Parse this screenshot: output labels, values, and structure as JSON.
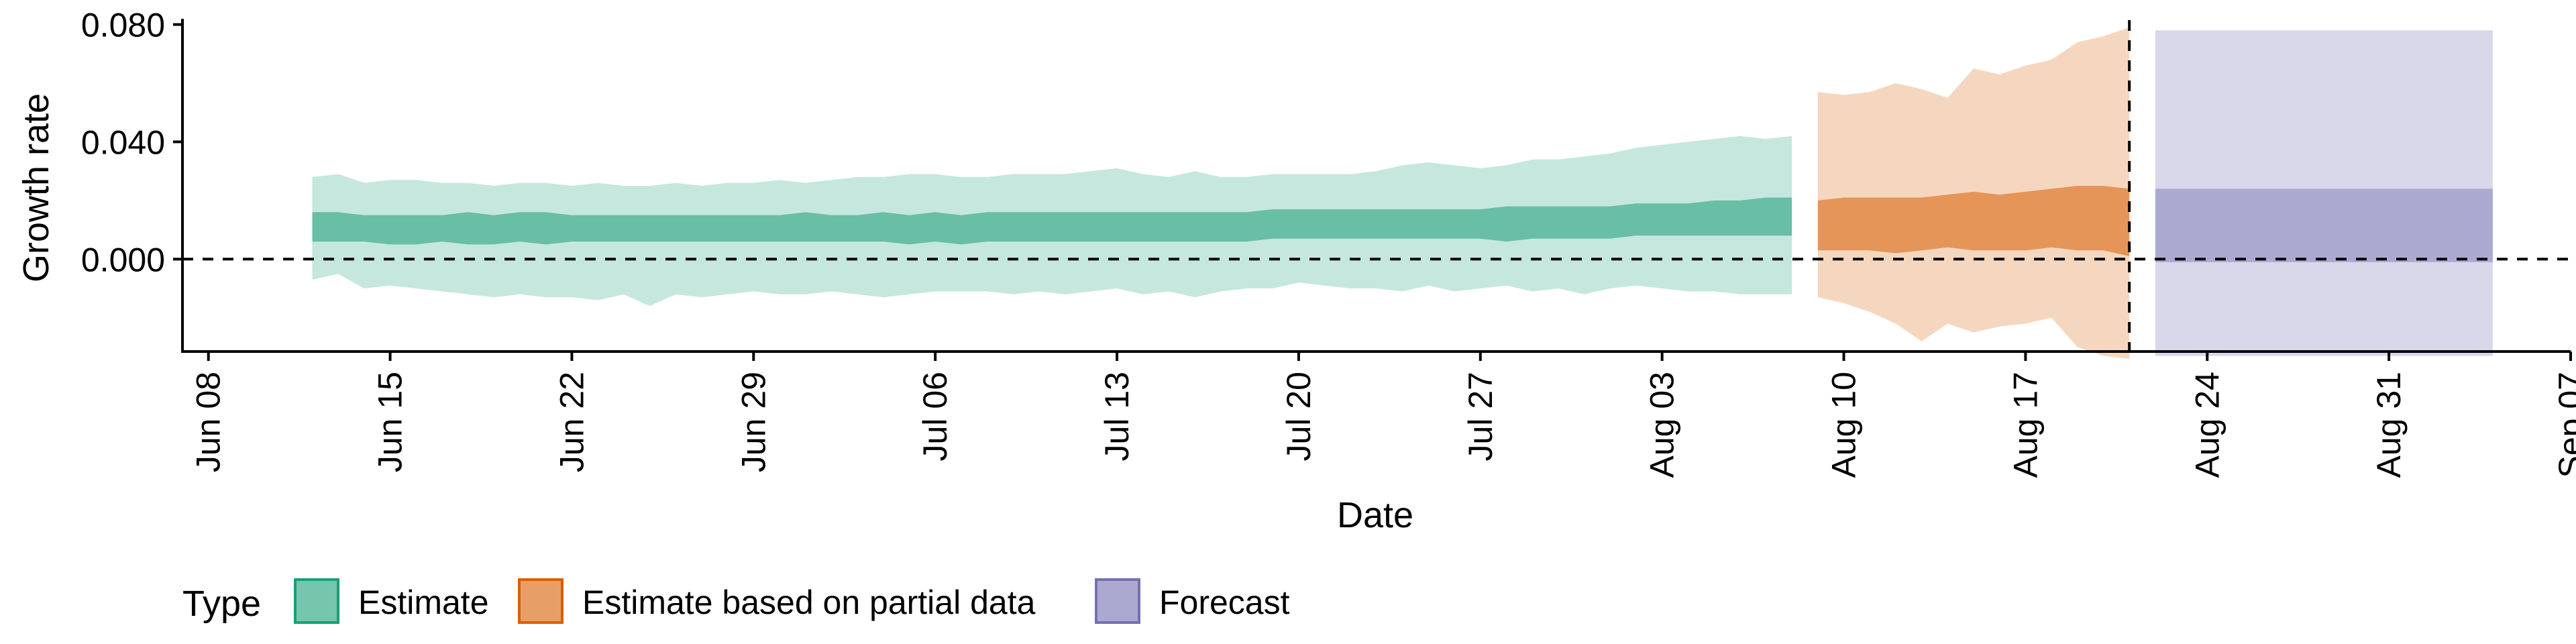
{
  "chart_data": {
    "type": "area",
    "xlabel": "Date",
    "ylabel": "Growth rate",
    "x_range": [
      "2020-06-07",
      "2020-09-07"
    ],
    "ylim": [
      -0.0315,
      0.0815
    ],
    "x_ticks": [
      "Jun 08",
      "Jun 15",
      "Jun 22",
      "Jun 29",
      "Jul 06",
      "Jul 13",
      "Jul 20",
      "Jul 27",
      "Aug 03",
      "Aug 10",
      "Aug 17",
      "Aug 24",
      "Aug 31",
      "Sep 07"
    ],
    "y_ticks": [
      0.0,
      0.04,
      0.08
    ],
    "y_tick_labels": [
      "0.000",
      "0.040",
      "0.080"
    ],
    "grid": false,
    "reference_lines": {
      "horizontal_y": 0.0,
      "vertical_x": "2020-08-21"
    },
    "legend": {
      "title": "Type",
      "position": "bottom-left",
      "entries": [
        {
          "label": "Estimate",
          "color": "#1b9e77"
        },
        {
          "label": "Estimate based on partial data",
          "color": "#d95f02"
        },
        {
          "label": "Forecast",
          "color": "#7570b3"
        }
      ]
    },
    "series": [
      {
        "name": "Estimate",
        "color": "#1b9e77",
        "x": [
          "2020-06-12",
          "2020-06-13",
          "2020-06-14",
          "2020-06-15",
          "2020-06-16",
          "2020-06-17",
          "2020-06-18",
          "2020-06-19",
          "2020-06-20",
          "2020-06-21",
          "2020-06-22",
          "2020-06-23",
          "2020-06-24",
          "2020-06-25",
          "2020-06-26",
          "2020-06-27",
          "2020-06-28",
          "2020-06-29",
          "2020-06-30",
          "2020-07-01",
          "2020-07-02",
          "2020-07-03",
          "2020-07-04",
          "2020-07-05",
          "2020-07-06",
          "2020-07-07",
          "2020-07-08",
          "2020-07-09",
          "2020-07-10",
          "2020-07-11",
          "2020-07-12",
          "2020-07-13",
          "2020-07-14",
          "2020-07-15",
          "2020-07-16",
          "2020-07-17",
          "2020-07-18",
          "2020-07-19",
          "2020-07-20",
          "2020-07-21",
          "2020-07-22",
          "2020-07-23",
          "2020-07-24",
          "2020-07-25",
          "2020-07-26",
          "2020-07-27",
          "2020-07-28",
          "2020-07-29",
          "2020-07-30",
          "2020-07-31",
          "2020-08-01",
          "2020-08-02",
          "2020-08-03",
          "2020-08-04",
          "2020-08-05",
          "2020-08-06",
          "2020-08-07",
          "2020-08-08"
        ],
        "lower_90": [
          -0.007,
          -0.005,
          -0.01,
          -0.009,
          -0.01,
          -0.011,
          -0.012,
          -0.013,
          -0.012,
          -0.013,
          -0.013,
          -0.014,
          -0.012,
          -0.016,
          -0.012,
          -0.013,
          -0.012,
          -0.011,
          -0.012,
          -0.012,
          -0.011,
          -0.012,
          -0.013,
          -0.012,
          -0.011,
          -0.011,
          -0.011,
          -0.012,
          -0.011,
          -0.012,
          -0.011,
          -0.01,
          -0.012,
          -0.011,
          -0.013,
          -0.011,
          -0.01,
          -0.01,
          -0.008,
          -0.009,
          -0.01,
          -0.01,
          -0.011,
          -0.009,
          -0.011,
          -0.01,
          -0.009,
          -0.011,
          -0.01,
          -0.012,
          -0.01,
          -0.009,
          -0.01,
          -0.011,
          -0.011,
          -0.012,
          -0.012,
          -0.012
        ],
        "upper_90": [
          0.028,
          0.029,
          0.026,
          0.027,
          0.027,
          0.026,
          0.026,
          0.025,
          0.026,
          0.026,
          0.025,
          0.026,
          0.025,
          0.025,
          0.026,
          0.025,
          0.026,
          0.026,
          0.027,
          0.026,
          0.027,
          0.028,
          0.028,
          0.029,
          0.029,
          0.028,
          0.028,
          0.029,
          0.029,
          0.029,
          0.03,
          0.031,
          0.029,
          0.028,
          0.03,
          0.028,
          0.028,
          0.029,
          0.029,
          0.029,
          0.029,
          0.03,
          0.032,
          0.033,
          0.032,
          0.031,
          0.032,
          0.034,
          0.034,
          0.035,
          0.036,
          0.038,
          0.039,
          0.04,
          0.041,
          0.042,
          0.041,
          0.042
        ],
        "lower_50": [
          0.006,
          0.006,
          0.006,
          0.005,
          0.005,
          0.006,
          0.005,
          0.005,
          0.006,
          0.005,
          0.006,
          0.006,
          0.006,
          0.006,
          0.006,
          0.006,
          0.006,
          0.006,
          0.006,
          0.006,
          0.006,
          0.006,
          0.006,
          0.005,
          0.006,
          0.005,
          0.006,
          0.006,
          0.006,
          0.006,
          0.006,
          0.006,
          0.006,
          0.006,
          0.006,
          0.006,
          0.006,
          0.007,
          0.007,
          0.007,
          0.007,
          0.007,
          0.007,
          0.007,
          0.007,
          0.007,
          0.006,
          0.007,
          0.007,
          0.007,
          0.007,
          0.008,
          0.008,
          0.008,
          0.008,
          0.008,
          0.008,
          0.008
        ],
        "upper_50": [
          0.016,
          0.016,
          0.015,
          0.015,
          0.015,
          0.015,
          0.016,
          0.015,
          0.016,
          0.016,
          0.015,
          0.015,
          0.015,
          0.015,
          0.015,
          0.015,
          0.015,
          0.015,
          0.015,
          0.016,
          0.015,
          0.015,
          0.016,
          0.015,
          0.016,
          0.015,
          0.016,
          0.016,
          0.016,
          0.016,
          0.016,
          0.016,
          0.016,
          0.016,
          0.016,
          0.016,
          0.016,
          0.017,
          0.017,
          0.017,
          0.017,
          0.017,
          0.017,
          0.017,
          0.017,
          0.017,
          0.018,
          0.018,
          0.018,
          0.018,
          0.018,
          0.019,
          0.019,
          0.019,
          0.02,
          0.02,
          0.021,
          0.021
        ]
      },
      {
        "name": "Estimate based on partial data",
        "color": "#d95f02",
        "x": [
          "2020-08-09",
          "2020-08-10",
          "2020-08-11",
          "2020-08-12",
          "2020-08-13",
          "2020-08-14",
          "2020-08-15",
          "2020-08-16",
          "2020-08-17",
          "2020-08-18",
          "2020-08-19",
          "2020-08-20",
          "2020-08-21"
        ],
        "lower_90": [
          -0.013,
          -0.015,
          -0.018,
          -0.022,
          -0.028,
          -0.022,
          -0.025,
          -0.023,
          -0.022,
          -0.02,
          -0.03,
          -0.033,
          -0.034
        ],
        "upper_90": [
          0.057,
          0.056,
          0.057,
          0.06,
          0.058,
          0.055,
          0.065,
          0.063,
          0.066,
          0.068,
          0.074,
          0.076,
          0.079
        ],
        "lower_50": [
          0.003,
          0.003,
          0.003,
          0.002,
          0.003,
          0.004,
          0.003,
          0.003,
          0.003,
          0.004,
          0.003,
          0.003,
          0.001
        ],
        "upper_50": [
          0.02,
          0.021,
          0.021,
          0.021,
          0.021,
          0.022,
          0.023,
          0.022,
          0.023,
          0.024,
          0.025,
          0.025,
          0.024
        ]
      },
      {
        "name": "Forecast",
        "color": "#7570b3",
        "x": [
          "2020-08-22",
          "2020-09-04"
        ],
        "lower_90": [
          -0.033,
          -0.033
        ],
        "upper_90": [
          0.078,
          0.078
        ],
        "lower_50": [
          -0.001,
          -0.001
        ],
        "upper_50": [
          0.024,
          0.024
        ]
      }
    ]
  }
}
